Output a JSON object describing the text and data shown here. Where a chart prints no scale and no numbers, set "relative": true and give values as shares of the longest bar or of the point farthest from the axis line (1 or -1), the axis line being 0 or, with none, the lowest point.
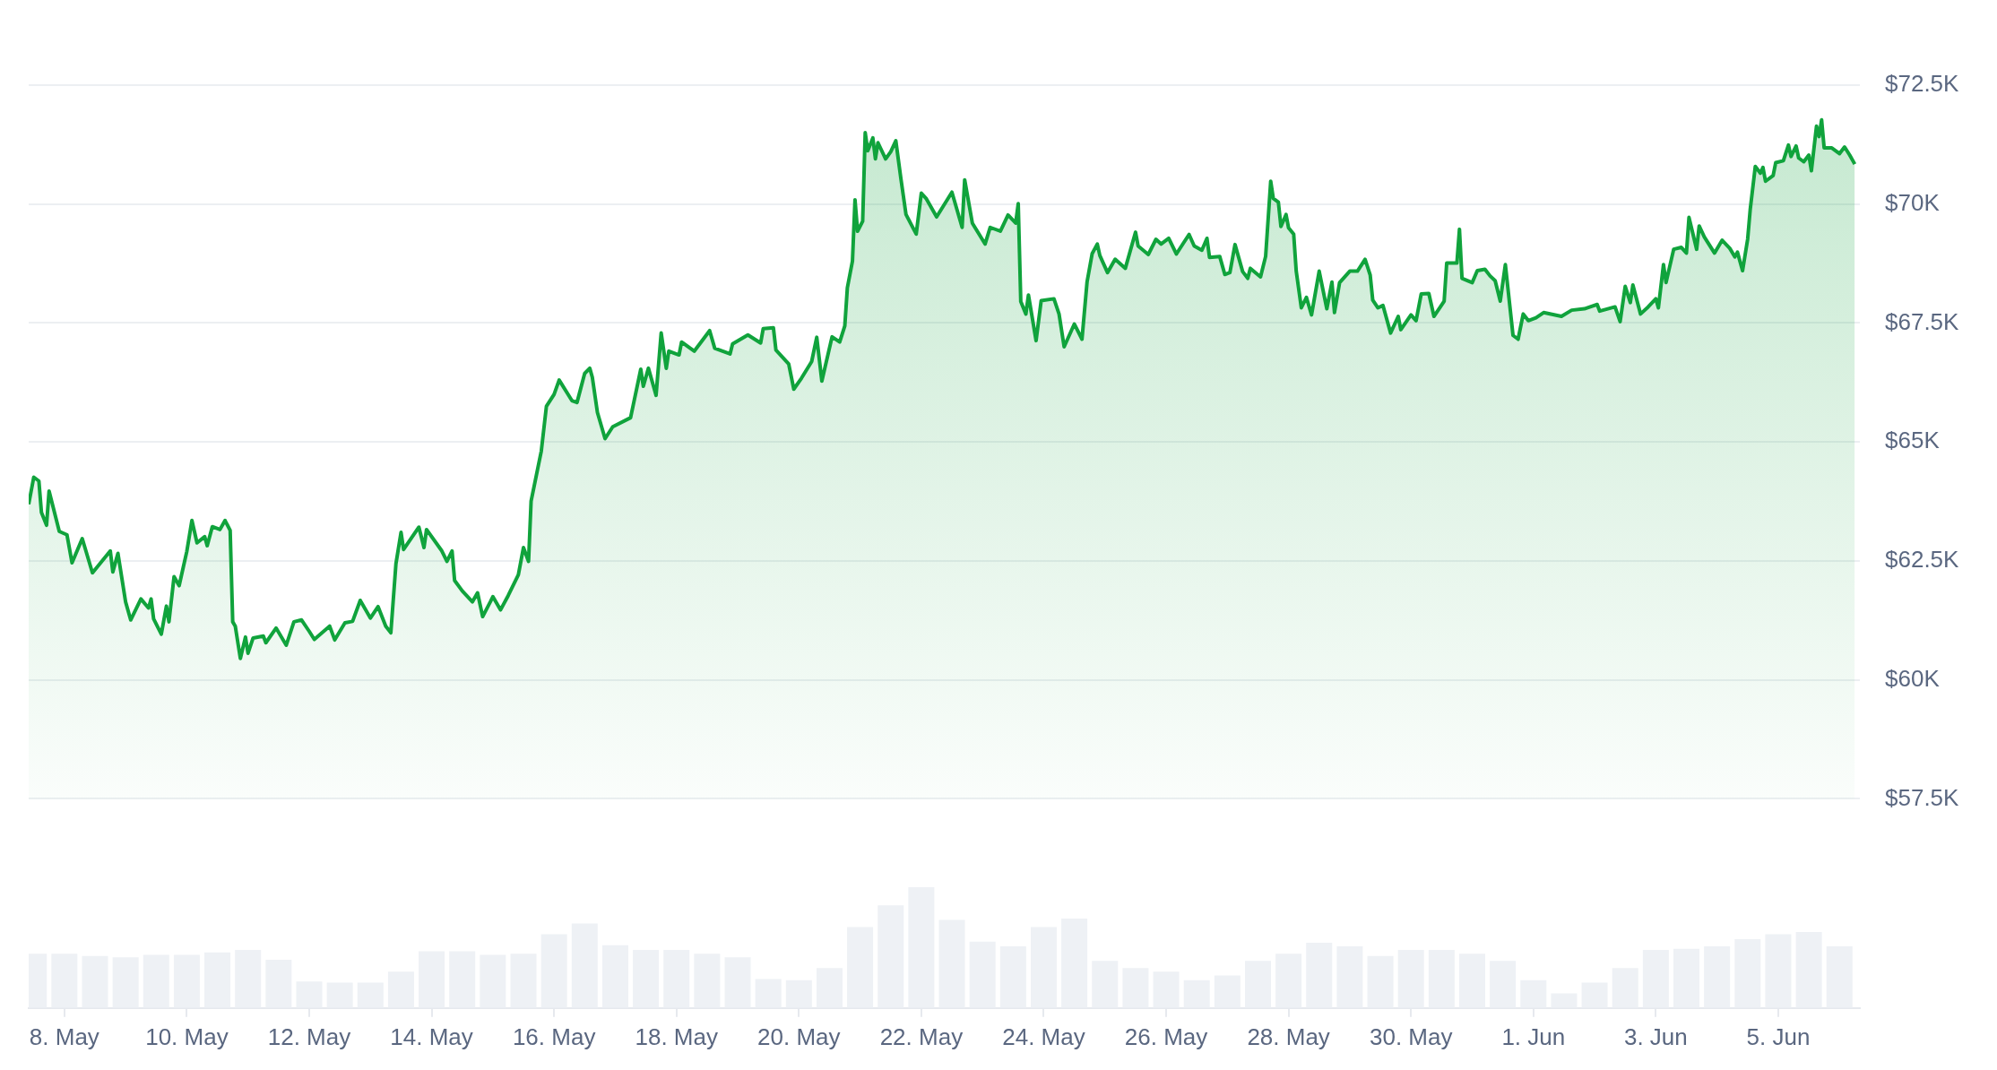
{
  "chart_data": [
    {
      "type": "area",
      "color": "#10a33c",
      "xlim": [
        "--05-07T10:00",
        "--06-06T08:00"
      ],
      "ylim": [
        57500,
        72500
      ],
      "yticks": [
        {
          "value": 57500,
          "label": "$57.5K"
        },
        {
          "value": 60000,
          "label": "$60K"
        },
        {
          "value": 62500,
          "label": "$62.5K"
        },
        {
          "value": 65000,
          "label": "$65K"
        },
        {
          "value": 67500,
          "label": "$67.5K"
        },
        {
          "value": 70000,
          "label": "$70K"
        },
        {
          "value": 72500,
          "label": "$72.5K"
        }
      ],
      "grid": "y",
      "tick_labels": "y",
      "x": [
        "--05-07T10:00",
        "--05-07T12:00",
        "--05-07T14:00",
        "--05-07T15:00",
        "--05-07T17:00",
        "--05-07T18:00",
        "--05-07T22:00",
        "--05-08T01:00",
        "--05-08T03:00",
        "--05-08T07:00",
        "--05-08T11:00",
        "--05-08T18:00",
        "--05-08T19:00",
        "--05-08T21:00",
        "--05-09T00:00",
        "--05-09T02:00",
        "--05-09T06:00",
        "--05-09T09:00",
        "--05-09T10:00",
        "--05-09T11:00",
        "--05-09T14:00",
        "--05-09T16:00",
        "--05-09T17:00",
        "--05-09T19:00",
        "--05-09T21:00",
        "--05-10T00:00",
        "--05-10T02:00",
        "--05-10T04:00",
        "--05-10T07:00",
        "--05-10T08:00",
        "--05-10T10:00",
        "--05-10T13:00",
        "--05-10T15:00",
        "--05-10T17:00",
        "--05-10T18:00",
        "--05-10T19:00",
        "--05-10T21:00",
        "--05-10T23:00",
        "--05-11T00:00",
        "--05-11T02:00",
        "--05-11T06:00",
        "--05-11T07:00",
        "--05-11T11:00",
        "--05-11T15:00",
        "--05-11T18:00",
        "--05-11T21:00",
        "--05-12T00:00",
        "--05-12T02:00",
        "--05-12T08:00",
        "--05-12T10:00",
        "--05-12T14:00",
        "--05-12T17:00",
        "--05-12T20:00",
        "--05-13T00:00",
        "--05-13T03:00",
        "--05-13T06:00",
        "--05-13T08:00",
        "--05-13T10:00",
        "--05-13T12:00",
        "--05-13T13:00",
        "--05-13T19:00",
        "--05-13T21:00",
        "--05-13T22:00",
        "--05-14T04:00",
        "--05-14T06:00",
        "--05-14T08:00",
        "--05-14T09:00",
        "--05-14T12:00",
        "--05-14T16:00",
        "--05-14T18:00",
        "--05-14T20:00",
        "--05-14T23:00",
        "--05-15T00:00",
        "--05-15T03:00",
        "--05-15T06:00",
        "--05-15T10:00",
        "--05-15T12:00",
        "--05-15T14:00",
        "--05-15T15:00",
        "--05-15T19:00",
        "--05-15T21:00",
        "--05-16T00:00",
        "--05-16T02:00",
        "--05-16T07:00",
        "--05-16T09:00",
        "--05-16T12:00",
        "--05-16T14:00",
        "--05-16T15:00",
        "--05-16T17:00",
        "--05-16T20:00",
        "--05-16T23:00",
        "--05-17T06:00",
        "--05-17T10:00",
        "--05-17T11:00",
        "--05-17T13:00",
        "--05-17T16:00",
        "--05-17T18:00",
        "--05-17T20:00",
        "--05-17T21:00",
        "--05-18T01:00",
        "--05-18T02:00",
        "--05-18T07:00",
        "--05-18T13:00",
        "--05-18T15:00",
        "--05-18T21:00",
        "--05-18T22:00",
        "--05-19T04:00",
        "--05-19T09:00",
        "--05-19T10:00",
        "--05-19T14:00",
        "--05-19T15:00",
        "--05-19T20:00",
        "--05-19T22:00",
        "--05-20T01:00",
        "--05-20T05:00",
        "--05-20T07:00",
        "--05-20T09:00",
        "--05-20T13:00",
        "--05-20T16:00",
        "--05-20T18:00",
        "--05-20T19:00",
        "--05-20T21:00",
        "--05-20T22:00",
        "--05-20T23:00",
        "--05-21T01:00",
        "--05-21T02:00",
        "--05-21T03:00",
        "--05-21T05:00",
        "--05-21T06:00",
        "--05-21T07:00",
        "--05-21T10:00",
        "--05-21T12:00",
        "--05-21T14:00",
        "--05-21T16:00",
        "--05-21T18:00",
        "--05-21T22:00",
        "--05-22T00:00",
        "--05-22T02:00",
        "--05-22T06:00",
        "--05-22T12:00",
        "--05-22T16:00",
        "--05-22T17:00",
        "--05-22T20:00",
        "--05-23T01:00",
        "--05-23T03:00",
        "--05-23T07:00",
        "--05-23T10:00",
        "--05-23T13:00",
        "--05-23T14:00",
        "--05-23T15:00",
        "--05-23T17:00",
        "--05-23T18:00",
        "--05-23T21:00",
        "--05-23T23:00",
        "--05-24T04:00",
        "--05-24T06:00",
        "--05-24T08:00",
        "--05-24T12:00",
        "--05-24T15:00",
        "--05-24T17:00",
        "--05-24T19:00",
        "--05-24T21:00",
        "--05-24T22:00",
        "--05-25T01:00",
        "--05-25T04:00",
        "--05-25T08:00",
        "--05-25T12:00",
        "--05-25T13:00",
        "--05-25T17:00",
        "--05-25T20:00",
        "--05-25T22:00",
        "--05-26T01:00",
        "--05-26T04:00",
        "--05-26T07:00",
        "--05-26T09:00",
        "--05-26T11:00",
        "--05-26T14:00",
        "--05-26T16:00",
        "--05-26T17:00",
        "--05-26T21:00",
        "--05-26T23:00",
        "--05-27T01:00",
        "--05-27T03:00",
        "--05-27T06:00",
        "--05-27T08:00",
        "--05-27T09:00",
        "--05-27T13:00",
        "--05-27T15:00",
        "--05-27T17:00",
        "--05-27T18:00",
        "--05-27T20:00",
        "--05-27T21:00",
        "--05-27T23:00",
        "--05-28T00:00",
        "--05-28T02:00",
        "--05-28T03:00",
        "--05-28T05:00",
        "--05-28T07:00",
        "--05-28T09:00",
        "--05-28T12:00",
        "--05-28T15:00",
        "--05-28T17:00",
        "--05-28T18:00",
        "--05-28T20:00",
        "--05-29T00:00",
        "--05-29T03:00",
        "--05-29T06:00",
        "--05-29T08:00",
        "--05-29T09:00",
        "--05-29T11:00",
        "--05-29T13:00",
        "--05-29T16:00",
        "--05-29T19:00",
        "--05-29T20:00",
        "--05-30T00:00",
        "--05-30T02:00",
        "--05-30T04:00",
        "--05-30T07:00",
        "--05-30T09:00",
        "--05-30T13:00",
        "--05-30T14:00",
        "--05-30T18:00",
        "--05-30T19:00",
        "--05-30T20:00",
        "--05-31T00:00",
        "--05-31T02:00",
        "--05-31T05:00",
        "--05-31T07:00",
        "--05-31T09:00",
        "--05-31T11:00",
        "--05-31T13:00",
        "--05-31T16:00",
        "--05-31T18:00",
        "--05-31T20:00",
        "--05-31T22:00",
        "--06-01T01:00",
        "--06-01T04:00",
        "--06-01T11:00",
        "--06-01T15:00",
        "--06-01T20:00",
        "--06-02T01:00",
        "--06-02T02:00",
        "--06-02T08:00",
        "--06-02T10:00",
        "--06-02T12:00",
        "--06-02T14:00",
        "--06-02T15:00",
        "--06-02T18:00",
        "--06-02T21:00",
        "--06-03T00:00",
        "--06-03T01:00",
        "--06-03T03:00",
        "--06-03T04:00",
        "--06-03T07:00",
        "--06-03T10:00",
        "--06-03T12:00",
        "--06-03T13:00",
        "--06-03T16:00",
        "--06-03T17:00",
        "--06-03T19:00",
        "--06-03T23:00",
        "--06-04T02:00",
        "--06-04T05:00",
        "--06-04T07:00",
        "--06-04T08:00",
        "--06-04T10:00",
        "--06-04T12:00",
        "--06-04T13:00",
        "--06-04T15:00",
        "--06-04T17:00",
        "--06-04T18:00",
        "--06-04T19:00",
        "--06-04T22:00",
        "--06-04T23:00",
        "--06-05T02:00",
        "--06-05T04:00",
        "--06-05T05:00",
        "--06-05T07:00",
        "--06-05T08:00",
        "--06-05T10:00",
        "--06-05T12:00",
        "--06-05T13:00",
        "--06-05T15:00",
        "--06-05T16:00",
        "--06-05T17:00",
        "--06-05T18:00",
        "--06-05T21:00",
        "--06-06T00:00",
        "--06-06T02:00",
        "--06-06T04:00",
        "--06-06T06:00"
      ],
      "values": [
        63690,
        64260,
        64180,
        63520,
        63250,
        63970,
        63120,
        63050,
        62460,
        62970,
        62250,
        62710,
        62270,
        62660,
        61640,
        61260,
        61700,
        61510,
        61700,
        61280,
        60960,
        61550,
        61220,
        62170,
        61980,
        62700,
        63350,
        62880,
        63010,
        62820,
        63220,
        63160,
        63350,
        63140,
        61220,
        61130,
        60450,
        60900,
        60560,
        60880,
        60920,
        60780,
        61090,
        60730,
        61220,
        61260,
        61020,
        60850,
        61130,
        60840,
        61200,
        61230,
        61670,
        61300,
        61540,
        61130,
        60990,
        62440,
        63100,
        62740,
        63210,
        62780,
        63160,
        62710,
        62490,
        62710,
        62090,
        61870,
        61640,
        61830,
        61330,
        61640,
        61750,
        61470,
        61770,
        62210,
        62780,
        62490,
        63760,
        64810,
        65750,
        66000,
        66300,
        65870,
        65830,
        66440,
        66550,
        66360,
        65620,
        65070,
        65320,
        65510,
        66530,
        66170,
        66550,
        65980,
        67290,
        66550,
        66910,
        66830,
        67100,
        66910,
        67340,
        66970,
        66850,
        67060,
        67250,
        67080,
        67380,
        67400,
        66930,
        66640,
        66110,
        66340,
        66690,
        67200,
        66280,
        67210,
        67100,
        67440,
        68240,
        68800,
        70090,
        69430,
        69640,
        71500,
        71120,
        71390,
        70950,
        71290,
        70950,
        71100,
        71330,
        70530,
        69780,
        69370,
        70230,
        70110,
        69730,
        70250,
        69510,
        70510,
        69600,
        69160,
        69510,
        69430,
        69770,
        69600,
        70010,
        67950,
        67690,
        68090,
        67130,
        67970,
        68010,
        67690,
        67000,
        67480,
        67160,
        68370,
        68960,
        69160,
        68920,
        68560,
        68840,
        68650,
        69410,
        69120,
        68940,
        69260,
        69160,
        69280,
        68950,
        69200,
        69360,
        69120,
        69030,
        69280,
        68880,
        68900,
        68520,
        68560,
        69150,
        68580,
        68440,
        68650,
        68470,
        68900,
        70480,
        70120,
        70040,
        69530,
        69780,
        69500,
        69370,
        68590,
        67820,
        68040,
        67670,
        68590,
        67800,
        68360,
        67720,
        68350,
        68590,
        68590,
        68840,
        68510,
        67980,
        67820,
        67870,
        67290,
        67640,
        67360,
        67670,
        67550,
        68110,
        68120,
        67640,
        67960,
        68760,
        68760,
        69470,
        68440,
        68350,
        68600,
        68630,
        68490,
        68390,
        67960,
        68730,
        67240,
        67160,
        67690,
        67550,
        67610,
        67720,
        67640,
        67770,
        67800,
        67890,
        67750,
        67840,
        67530,
        68270,
        67930,
        68300,
        67690,
        67840,
        68010,
        67820,
        68730,
        68350,
        69050,
        69090,
        68970,
        69720,
        69050,
        69540,
        69310,
        68970,
        69240,
        69070,
        68890,
        68990,
        68600,
        69260,
        69880,
        70790,
        70650,
        70770,
        70480,
        70600,
        70870,
        70910,
        71240,
        71000,
        71220,
        70970,
        70890,
        71030,
        70700,
        71640,
        71420,
        71770,
        71180,
        71180,
        71060,
        71200,
        71030,
        70840
      ]
    },
    {
      "type": "bar",
      "relative": true,
      "color": "#eef1f5",
      "tick_labels": "x",
      "xlim": [
        "--05-07T10:00",
        "--06-06T08:00"
      ],
      "xticks": [
        {
          "value": "--05-08",
          "label": "8. May"
        },
        {
          "value": "--05-10",
          "label": "10. May"
        },
        {
          "value": "--05-12",
          "label": "12. May"
        },
        {
          "value": "--05-14",
          "label": "14. May"
        },
        {
          "value": "--05-16",
          "label": "16. May"
        },
        {
          "value": "--05-18",
          "label": "18. May"
        },
        {
          "value": "--05-20",
          "label": "20. May"
        },
        {
          "value": "--05-22",
          "label": "22. May"
        },
        {
          "value": "--05-24",
          "label": "24. May"
        },
        {
          "value": "--05-26",
          "label": "26. May"
        },
        {
          "value": "--05-28",
          "label": "28. May"
        },
        {
          "value": "--05-30",
          "label": "30. May"
        },
        {
          "value": "--06-01",
          "label": "1. Jun"
        },
        {
          "value": "--06-03",
          "label": "3. Jun"
        },
        {
          "value": "--06-05",
          "label": "5. Jun"
        }
      ],
      "x": [
        "--05-07T12:00",
        "--05-08T00:00",
        "--05-08T12:00",
        "--05-09T00:00",
        "--05-09T12:00",
        "--05-10T00:00",
        "--05-10T12:00",
        "--05-11T00:00",
        "--05-11T12:00",
        "--05-12T00:00",
        "--05-12T12:00",
        "--05-13T00:00",
        "--05-13T12:00",
        "--05-14T00:00",
        "--05-14T12:00",
        "--05-15T00:00",
        "--05-15T12:00",
        "--05-16T00:00",
        "--05-16T12:00",
        "--05-17T00:00",
        "--05-17T12:00",
        "--05-18T00:00",
        "--05-18T12:00",
        "--05-19T00:00",
        "--05-19T12:00",
        "--05-20T00:00",
        "--05-20T12:00",
        "--05-21T00:00",
        "--05-21T12:00",
        "--05-22T00:00",
        "--05-22T12:00",
        "--05-23T00:00",
        "--05-23T12:00",
        "--05-24T00:00",
        "--05-24T12:00",
        "--05-25T00:00",
        "--05-25T12:00",
        "--05-26T00:00",
        "--05-26T12:00",
        "--05-27T00:00",
        "--05-27T12:00",
        "--05-28T00:00",
        "--05-28T12:00",
        "--05-29T00:00",
        "--05-29T12:00",
        "--05-30T00:00",
        "--05-30T12:00",
        "--05-31T00:00",
        "--05-31T12:00",
        "--06-01T00:00",
        "--06-01T12:00",
        "--06-02T00:00",
        "--06-02T12:00",
        "--06-03T00:00",
        "--06-03T12:00",
        "--06-04T00:00",
        "--06-04T12:00",
        "--06-05T00:00",
        "--06-05T12:00",
        "--06-06T00:00"
      ],
      "values": [
        0.45,
        0.45,
        0.43,
        0.42,
        0.44,
        0.44,
        0.46,
        0.48,
        0.4,
        0.22,
        0.21,
        0.21,
        0.3,
        0.47,
        0.47,
        0.44,
        0.45,
        0.61,
        0.7,
        0.52,
        0.48,
        0.48,
        0.45,
        0.42,
        0.24,
        0.23,
        0.33,
        0.67,
        0.85,
        1,
        0.73,
        0.55,
        0.51,
        0.67,
        0.74,
        0.39,
        0.33,
        0.3,
        0.23,
        0.27,
        0.39,
        0.45,
        0.54,
        0.51,
        0.43,
        0.48,
        0.48,
        0.45,
        0.39,
        0.23,
        0.12,
        0.21,
        0.33,
        0.48,
        0.49,
        0.51,
        0.57,
        0.61,
        0.63,
        0.51
      ]
    }
  ]
}
